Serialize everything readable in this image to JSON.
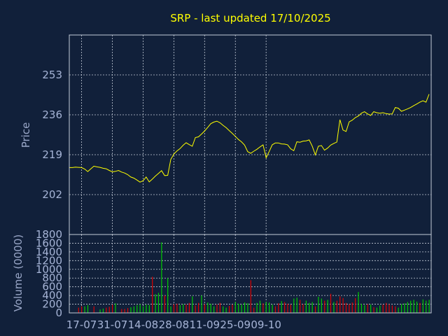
{
  "chart_data": [
    {
      "type": "line",
      "title": "SRP - last updated 17/10/2025",
      "ylabel": "Price",
      "y_ticks": [
        "253",
        "236",
        "219",
        "202"
      ],
      "x_ticks": [
        "17-07",
        "31-07",
        "14-08",
        "28-08",
        "11-09",
        "25-09",
        "09-10"
      ],
      "ylim": [
        185,
        270
      ],
      "grid": true,
      "color": "#ffff00",
      "series": [
        {
          "values": [
            213.5,
            213.5,
            213.7,
            213.6,
            213.5,
            212.9,
            211.8,
            213.0,
            214.1,
            213.8,
            213.6,
            213.2,
            213.0,
            212.3,
            211.7,
            211.9,
            212.3,
            211.6,
            211.2,
            210.5,
            209.5,
            209.0,
            208.2,
            207.3,
            207.9,
            209.5,
            207.4,
            208.6,
            209.9,
            211.0,
            212.2,
            210.1,
            210.2,
            217.0,
            219.3,
            220.6,
            221.6,
            223.0,
            224.1,
            223.3,
            222.6,
            226.3,
            226.6,
            227.8,
            229.1,
            230.6,
            232.2,
            232.9,
            233.3,
            232.6,
            231.5,
            230.5,
            229.3,
            228.1,
            226.8,
            225.5,
            224.5,
            223.1,
            220.3,
            219.6,
            220.5,
            221.3,
            222.3,
            223.2,
            217.7,
            220.4,
            223.2,
            224.0,
            224.0,
            223.6,
            223.5,
            223.2,
            221.5,
            220.7,
            224.5,
            224.3,
            224.8,
            224.9,
            225.3,
            222.6,
            218.9,
            222.6,
            222.9,
            220.9,
            221.8,
            223.1,
            223.8,
            224.4,
            233.9,
            229.5,
            228.9,
            233.0,
            233.7,
            234.8,
            235.5,
            236.7,
            237.3,
            236.4,
            235.7,
            237.3,
            236.9,
            236.7,
            236.9,
            236.5,
            236.3,
            236.4,
            239.1,
            238.8,
            237.5,
            238.0,
            238.5,
            239.1,
            239.9,
            240.6,
            241.4,
            242.0,
            241.4,
            244.8
          ]
        }
      ]
    },
    {
      "type": "bar",
      "ylabel": "Volume (0000)",
      "y_ticks": [
        "1800",
        "1600",
        "1400",
        "1200",
        "1000",
        "800",
        "600",
        "400",
        "200",
        "0"
      ],
      "ylim": [
        0,
        1800
      ],
      "grid": true,
      "up_color": "#00cc00",
      "down_color": "#dd0000",
      "series": [
        {
          "name": "volume",
          "values": [
            0,
            0,
            0,
            120,
            150,
            150,
            180,
            0,
            150,
            0,
            80,
            100,
            120,
            140,
            190,
            220,
            0,
            90,
            90,
            110,
            130,
            150,
            180,
            200,
            150,
            190,
            180,
            830,
            430,
            460,
            1620,
            400,
            800,
            150,
            200,
            210,
            180,
            200,
            190,
            230,
            380,
            170,
            230,
            400,
            200,
            240,
            210,
            150,
            190,
            230,
            150,
            120,
            160,
            190,
            250,
            210,
            190,
            240,
            220,
            750,
            120,
            230,
            280,
            220,
            250,
            240,
            190,
            150,
            220,
            270,
            250,
            210,
            190,
            330,
            350,
            300,
            200,
            280,
            230,
            250,
            150,
            370,
            330,
            280,
            300,
            440,
            250,
            280,
            380,
            340,
            230,
            200,
            240,
            340,
            480,
            210,
            180,
            200,
            190,
            130,
            120,
            170,
            190,
            230,
            200,
            170,
            150,
            120,
            200,
            220,
            250,
            280,
            300,
            260,
            230,
            310,
            280,
            300
          ],
          "direction": "uuudduudduuuddduuddduuuuuuuduuuduudduuddudduduuudduudduuuuudduuduuudduddduudduuuduudududdddddduuududuuddddduuuuuuuduuuud"
        }
      ]
    }
  ]
}
